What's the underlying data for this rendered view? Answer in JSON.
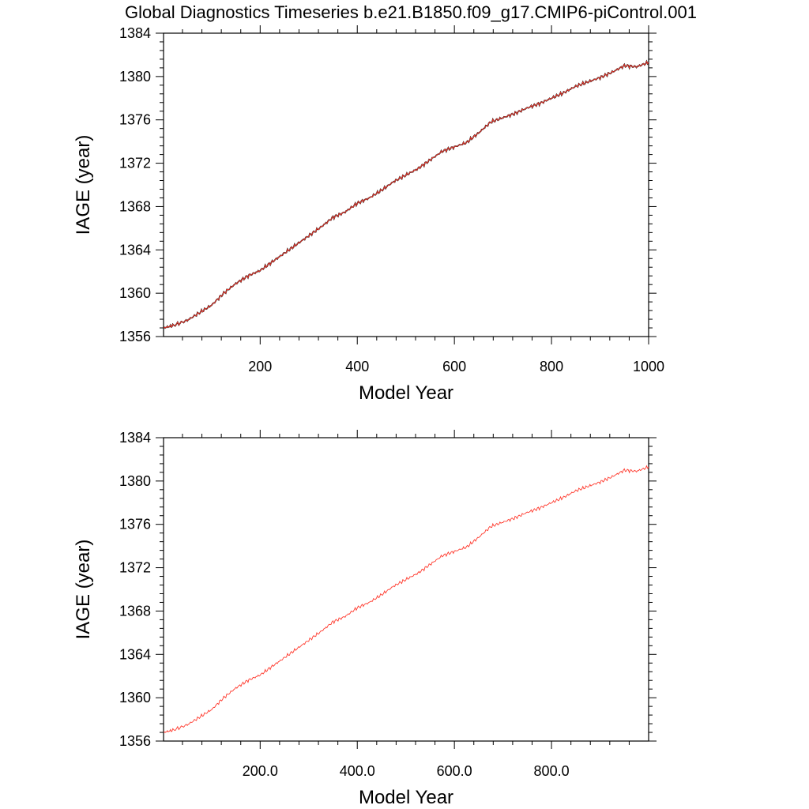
{
  "title": "Global Diagnostics Timeseries b.e21.B1850.f09_g17.CMIP6-piControl.001",
  "chart_data": [
    {
      "type": "line",
      "xlabel": "Model Year",
      "ylabel": "IAGE (year)",
      "xlim": [
        1,
        1000
      ],
      "ylim": [
        1356,
        1384
      ],
      "xticks": [
        "200",
        "400",
        "600",
        "800",
        "1000"
      ],
      "xtick_values": [
        200,
        400,
        600,
        800,
        1000
      ],
      "yticks": [
        "1356",
        "1360",
        "1364",
        "1368",
        "1372",
        "1376",
        "1380",
        "1384"
      ],
      "ytick_values": [
        1356,
        1360,
        1364,
        1368,
        1372,
        1376,
        1380,
        1384
      ],
      "series": [
        {
          "color": "#000000",
          "x": [
            1,
            20,
            50,
            75,
            100,
            125,
            150,
            175,
            200,
            225,
            250,
            275,
            300,
            325,
            350,
            375,
            400,
            425,
            450,
            475,
            500,
            525,
            550,
            575,
            600,
            625,
            650,
            675,
            700,
            725,
            750,
            775,
            800,
            825,
            850,
            875,
            900,
            925,
            950,
            975,
            1000
          ],
          "y": [
            1356.8,
            1357.0,
            1357.5,
            1358.2,
            1358.9,
            1360.0,
            1360.9,
            1361.6,
            1362.1,
            1362.9,
            1363.7,
            1364.5,
            1365.3,
            1366.1,
            1367.0,
            1367.5,
            1368.3,
            1368.8,
            1369.5,
            1370.3,
            1370.9,
            1371.5,
            1372.3,
            1373.1,
            1373.5,
            1373.9,
            1374.8,
            1375.8,
            1376.2,
            1376.6,
            1377.1,
            1377.5,
            1378.0,
            1378.5,
            1379.1,
            1379.5,
            1379.9,
            1380.4,
            1381.0,
            1380.9,
            1381.3
          ]
        },
        {
          "color": "#ff3b2f",
          "x": [
            1,
            20,
            50,
            75,
            100,
            125,
            150,
            175,
            200,
            225,
            250,
            275,
            300,
            325,
            350,
            375,
            400,
            425,
            450,
            475,
            500,
            525,
            550,
            575,
            600,
            625,
            650,
            675,
            700,
            725,
            750,
            775,
            800,
            825,
            850,
            875,
            900,
            925,
            950,
            975,
            1000
          ],
          "y": [
            1356.8,
            1357.0,
            1357.5,
            1358.2,
            1358.9,
            1360.0,
            1360.9,
            1361.6,
            1362.1,
            1362.9,
            1363.7,
            1364.5,
            1365.3,
            1366.1,
            1367.0,
            1367.5,
            1368.3,
            1368.8,
            1369.5,
            1370.3,
            1370.9,
            1371.5,
            1372.3,
            1373.1,
            1373.5,
            1373.9,
            1374.8,
            1375.8,
            1376.2,
            1376.6,
            1377.1,
            1377.5,
            1378.0,
            1378.5,
            1379.1,
            1379.5,
            1379.9,
            1380.4,
            1381.0,
            1380.9,
            1381.3
          ]
        }
      ]
    },
    {
      "type": "line",
      "xlabel": "Model Year",
      "ylabel": "IAGE (year)",
      "xlim": [
        1,
        1000
      ],
      "ylim": [
        1356,
        1384
      ],
      "xticks": [
        "200.0",
        "400.0",
        "600.0",
        "800.0"
      ],
      "xtick_values": [
        200,
        400,
        600,
        800
      ],
      "yticks": [
        "1356",
        "1360",
        "1364",
        "1368",
        "1372",
        "1376",
        "1380",
        "1384"
      ],
      "ytick_values": [
        1356,
        1360,
        1364,
        1368,
        1372,
        1376,
        1380,
        1384
      ],
      "series": [
        {
          "color": "#ff3b2f",
          "x": [
            1,
            20,
            50,
            75,
            100,
            125,
            150,
            175,
            200,
            225,
            250,
            275,
            300,
            325,
            350,
            375,
            400,
            425,
            450,
            475,
            500,
            525,
            550,
            575,
            600,
            625,
            650,
            675,
            700,
            725,
            750,
            775,
            800,
            825,
            850,
            875,
            900,
            925,
            950,
            975,
            1000
          ],
          "y": [
            1356.8,
            1357.0,
            1357.5,
            1358.2,
            1358.9,
            1360.0,
            1360.9,
            1361.6,
            1362.1,
            1362.9,
            1363.7,
            1364.5,
            1365.3,
            1366.1,
            1367.0,
            1367.5,
            1368.3,
            1368.8,
            1369.5,
            1370.3,
            1370.9,
            1371.5,
            1372.3,
            1373.1,
            1373.5,
            1373.9,
            1374.8,
            1375.8,
            1376.2,
            1376.6,
            1377.1,
            1377.5,
            1378.0,
            1378.5,
            1379.1,
            1379.5,
            1379.9,
            1380.4,
            1381.0,
            1380.9,
            1381.3
          ]
        }
      ]
    }
  ]
}
